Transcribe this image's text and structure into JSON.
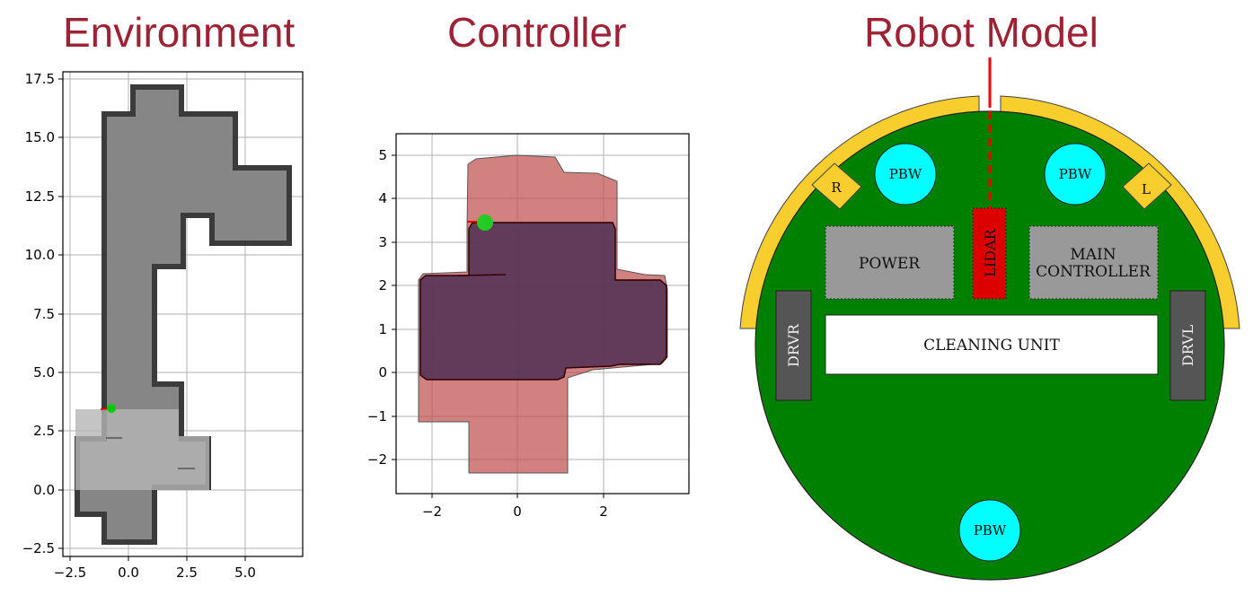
{
  "titles": {
    "environment": "Environment",
    "controller": "Controller",
    "robot_model": "Robot Model"
  },
  "environment": {
    "xticks": [
      "−2.5",
      "0.0",
      "2.5",
      "5.0"
    ],
    "yticks": [
      "17.5",
      "15.0",
      "12.5",
      "10.0",
      "7.5",
      "5.0",
      "2.5",
      "0.0",
      "−2.5"
    ]
  },
  "controller": {
    "xticks": [
      "−2",
      "0",
      "2"
    ],
    "yticks": [
      "5",
      "4",
      "3",
      "2",
      "1",
      "0",
      "−1",
      "−2"
    ]
  },
  "robot": {
    "labels": {
      "pbw_left": "PBW",
      "pbw_right": "PBW",
      "pbw_bottom": "PBW",
      "bumper_r": "R",
      "bumper_l": "L",
      "power": "POWER",
      "lidar": "LIDAR",
      "main_controller_1": "MAIN",
      "main_controller_2": "CONTROLLER",
      "cleaning_unit": "CLEANING UNIT",
      "drvr": "DRVR",
      "drvl": "DRVL"
    },
    "colors": {
      "body": "#008000",
      "bumper": "#f8cd2e",
      "pbw": "#00ffff",
      "lidar": "#dd0000",
      "module": "#999999",
      "driver": "#555555"
    }
  }
}
